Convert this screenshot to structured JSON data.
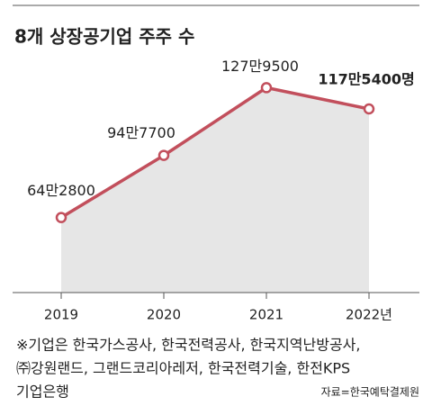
{
  "chart_data": {
    "type": "line",
    "title": "8개 상장공기업 주주 수",
    "categories": [
      "2019",
      "2020",
      "2021",
      "2022년"
    ],
    "values": [
      642800,
      947700,
      1279500,
      1175400
    ],
    "value_labels": [
      "64만2800",
      "94만7700",
      "127만9500",
      "117만5400명"
    ],
    "color": "#c24f5c",
    "area_color": "#e6e6e6",
    "ylim": [
      275000,
      1630000
    ],
    "notes": [
      "※기업은 한국가스공사, 한국전력공사, 한국지역난방공사,",
      "㈜강원랜드, 그랜드코리아레저, 한국전력기술, 한전KPS",
      "기업은행"
    ],
    "source": "자료=한국예탁결제원"
  }
}
